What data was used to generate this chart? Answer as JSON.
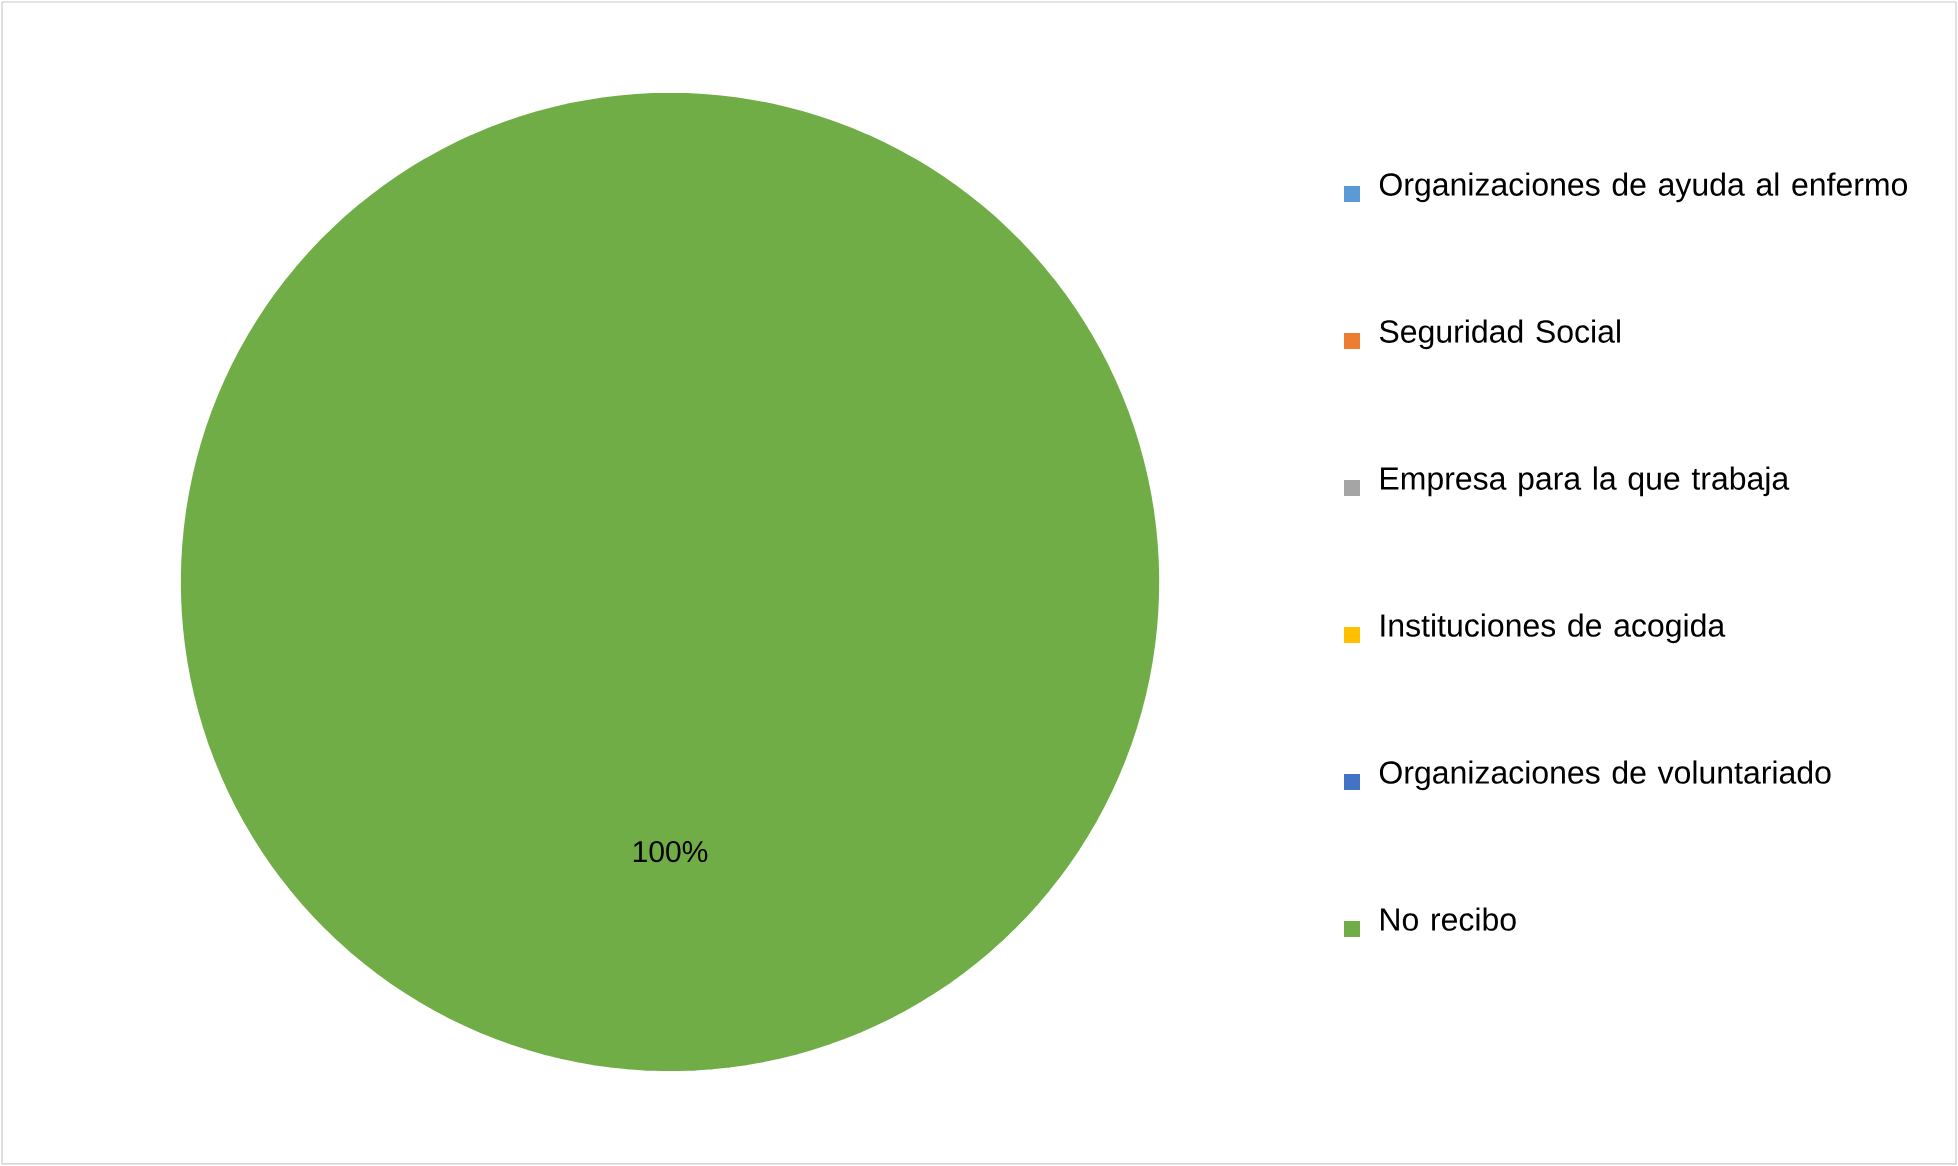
{
  "chart_data": {
    "type": "pie",
    "categories": [
      "Organizaciones de ayuda al enfermo",
      "Seguridad Social",
      "Empresa para la que trabaja",
      "Instituciones de acogida",
      "Organizaciones de voluntariado",
      "No recibo"
    ],
    "values": [
      0,
      0,
      0,
      0,
      0,
      100
    ],
    "colors": [
      "#5b9bd5",
      "#ed7d31",
      "#a5a5a5",
      "#ffc000",
      "#4472c4",
      "#70ad47"
    ],
    "value_labels": [
      null,
      null,
      null,
      null,
      null,
      "100%"
    ],
    "legend": "right"
  }
}
